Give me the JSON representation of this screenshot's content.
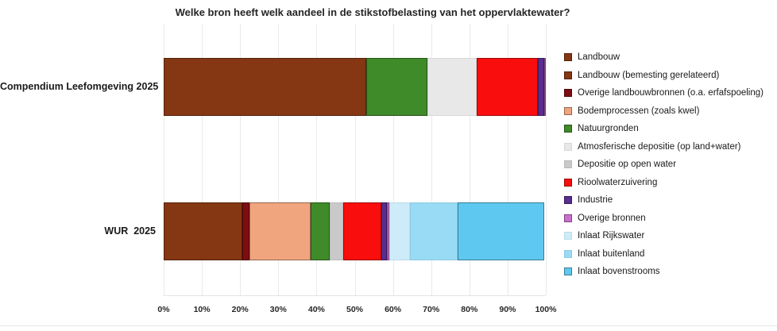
{
  "chart_data": {
    "type": "bar",
    "orientation": "horizontal",
    "stacked": true,
    "unit": "%",
    "title": "Welke bron heeft welk aandeel in de stikstofbelasting van het oppervlaktewater?",
    "xlabel": "",
    "ylabel": "",
    "xlim": [
      0,
      100
    ],
    "x_ticks": [
      "0%",
      "10%",
      "20%",
      "30%",
      "40%",
      "50%",
      "60%",
      "70%",
      "80%",
      "90%",
      "100%"
    ],
    "grid": true,
    "legend_position": "right",
    "categories": [
      "Compendium Leefomgeving 2025",
      "WUR  2025"
    ],
    "series": [
      {
        "name": "Landbouw",
        "color": "#853613",
        "values": [
          53,
          0
        ]
      },
      {
        "name": "Landbouw (bemesting gerelateerd)",
        "color": "#853613",
        "values": [
          0,
          20.5
        ]
      },
      {
        "name": "Overige landbouwbronnen (o.a. erfafspoeling)",
        "color": "#7E0D12",
        "values": [
          0,
          2
        ]
      },
      {
        "name": "Bodemprocessen (zoals kwel)",
        "color": "#F0A57E",
        "values": [
          0,
          16
        ]
      },
      {
        "name": "Natuurgronden",
        "color": "#3F8A29",
        "values": [
          16,
          5
        ]
      },
      {
        "name": "Atmosferische depositie (op land+water)",
        "color": "#E8E8E8",
        "values": [
          13,
          0
        ]
      },
      {
        "name": "Depositie op open water",
        "color": "#C9C9C9",
        "values": [
          0,
          3.5
        ]
      },
      {
        "name": "Rioolwaterzuivering",
        "color": "#F90D0D",
        "values": [
          16,
          10
        ]
      },
      {
        "name": "Industrie",
        "color": "#5B2D90",
        "values": [
          1.5,
          1.5
        ]
      },
      {
        "name": "Overige bronnen",
        "color": "#C970CE",
        "values": [
          0.5,
          0.5
        ]
      },
      {
        "name": "Inlaat Rijkswater",
        "color": "#CDEBF8",
        "values": [
          0,
          5.5
        ]
      },
      {
        "name": "Inlaat buitenland",
        "color": "#99DAF5",
        "values": [
          0,
          12.5
        ]
      },
      {
        "name": "Inlaat bovenstrooms",
        "color": "#5FC8F0",
        "values": [
          0,
          22.5
        ]
      }
    ]
  }
}
